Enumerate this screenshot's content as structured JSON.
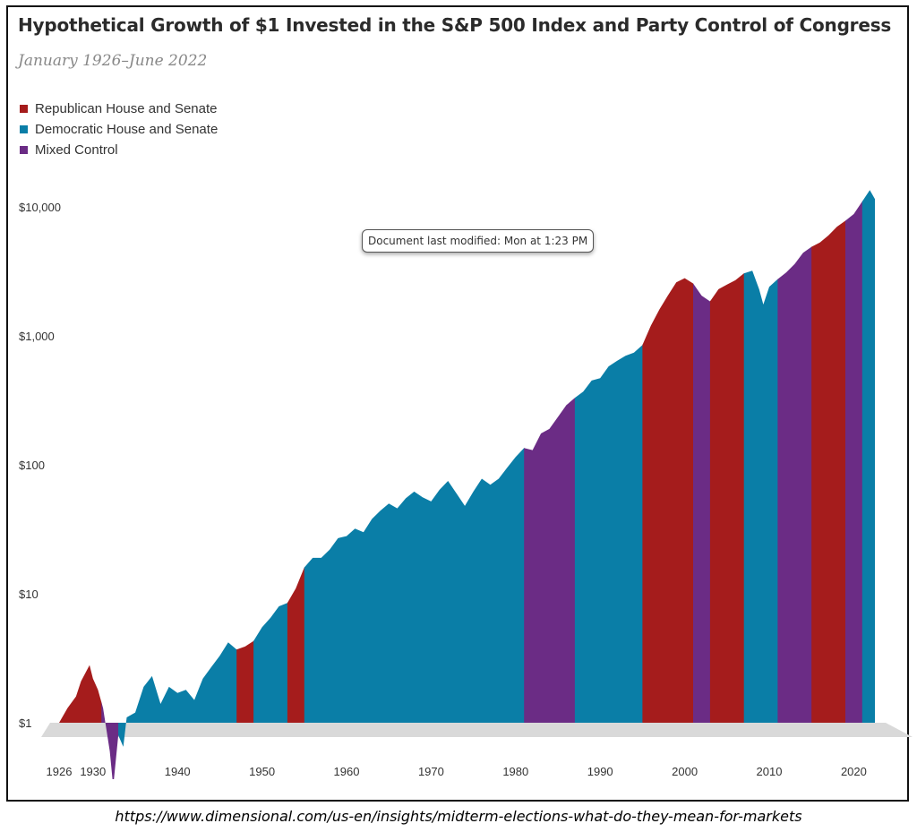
{
  "title": "Hypothetical Growth of $1 Invested in the S&P 500 Index and Party Control of Congress",
  "subtitle": "January 1926–June 2022",
  "legend": [
    {
      "label": "Republican House and Senate",
      "color": "#a51c1c"
    },
    {
      "label": "Democratic House and Senate",
      "color": "#0a7ea7"
    },
    {
      "label": "Mixed Control",
      "color": "#6b2c85"
    }
  ],
  "tooltip": "Document last modified: Mon at 1:23 PM",
  "source_url": "https://www.dimensional.com/us-en/insights/midterm-elections-what-do-they-mean-for-markets",
  "chart_data": {
    "type": "area",
    "y_scale": "log",
    "ylim": [
      1,
      15000
    ],
    "xlim": [
      1926,
      2022.5
    ],
    "y_ticks": [
      {
        "value": 1,
        "label": "$1"
      },
      {
        "value": 10,
        "label": "$10"
      },
      {
        "value": 100,
        "label": "$100"
      },
      {
        "value": 1000,
        "label": "$1,000"
      },
      {
        "value": 10000,
        "label": "$10,000"
      }
    ],
    "x_ticks": [
      {
        "value": 1926,
        "label": "1926"
      },
      {
        "value": 1930,
        "label": "1930"
      },
      {
        "value": 1940,
        "label": "1940"
      },
      {
        "value": 1950,
        "label": "1950"
      },
      {
        "value": 1960,
        "label": "1960"
      },
      {
        "value": 1970,
        "label": "1970"
      },
      {
        "value": 1980,
        "label": "1980"
      },
      {
        "value": 1990,
        "label": "1990"
      },
      {
        "value": 2000,
        "label": "2000"
      },
      {
        "value": 2010,
        "label": "2010"
      },
      {
        "value": 2020,
        "label": "2020"
      }
    ],
    "series": [
      {
        "x": 1926.0,
        "y": 1.0
      },
      {
        "x": 1927.0,
        "y": 1.3
      },
      {
        "x": 1928.0,
        "y": 1.6
      },
      {
        "x": 1928.6,
        "y": 2.1
      },
      {
        "x": 1929.6,
        "y": 2.8
      },
      {
        "x": 1930.0,
        "y": 2.2
      },
      {
        "x": 1930.6,
        "y": 1.8
      },
      {
        "x": 1931.2,
        "y": 1.3
      },
      {
        "x": 1932.0,
        "y": 0.6
      },
      {
        "x": 1932.4,
        "y": 0.32
      },
      {
        "x": 1933.0,
        "y": 0.8
      },
      {
        "x": 1933.6,
        "y": 0.65
      },
      {
        "x": 1934.0,
        "y": 1.1
      },
      {
        "x": 1935.0,
        "y": 1.2
      },
      {
        "x": 1936.0,
        "y": 1.9
      },
      {
        "x": 1937.0,
        "y": 2.3
      },
      {
        "x": 1938.0,
        "y": 1.4
      },
      {
        "x": 1939.0,
        "y": 1.9
      },
      {
        "x": 1940.0,
        "y": 1.7
      },
      {
        "x": 1941.0,
        "y": 1.8
      },
      {
        "x": 1942.0,
        "y": 1.5
      },
      {
        "x": 1943.0,
        "y": 2.2
      },
      {
        "x": 1944.0,
        "y": 2.7
      },
      {
        "x": 1945.0,
        "y": 3.3
      },
      {
        "x": 1946.0,
        "y": 4.2
      },
      {
        "x": 1947.0,
        "y": 3.7
      },
      {
        "x": 1948.0,
        "y": 3.9
      },
      {
        "x": 1949.0,
        "y": 4.3
      },
      {
        "x": 1950.0,
        "y": 5.5
      },
      {
        "x": 1951.0,
        "y": 6.5
      },
      {
        "x": 1952.0,
        "y": 8.0
      },
      {
        "x": 1953.0,
        "y": 8.5
      },
      {
        "x": 1954.0,
        "y": 11.0
      },
      {
        "x": 1955.0,
        "y": 16.0
      },
      {
        "x": 1956.0,
        "y": 19.0
      },
      {
        "x": 1957.0,
        "y": 19.0
      },
      {
        "x": 1958.0,
        "y": 22.0
      },
      {
        "x": 1959.0,
        "y": 27.0
      },
      {
        "x": 1960.0,
        "y": 28.0
      },
      {
        "x": 1961.0,
        "y": 32.0
      },
      {
        "x": 1962.0,
        "y": 30.0
      },
      {
        "x": 1963.0,
        "y": 38.0
      },
      {
        "x": 1964.0,
        "y": 44.0
      },
      {
        "x": 1965.0,
        "y": 50.0
      },
      {
        "x": 1966.0,
        "y": 46.0
      },
      {
        "x": 1967.0,
        "y": 55.0
      },
      {
        "x": 1968.0,
        "y": 62.0
      },
      {
        "x": 1969.0,
        "y": 56.0
      },
      {
        "x": 1970.0,
        "y": 52.0
      },
      {
        "x": 1971.0,
        "y": 64.0
      },
      {
        "x": 1972.0,
        "y": 75.0
      },
      {
        "x": 1973.0,
        "y": 60.0
      },
      {
        "x": 1974.0,
        "y": 48.0
      },
      {
        "x": 1975.0,
        "y": 62.0
      },
      {
        "x": 1976.0,
        "y": 78.0
      },
      {
        "x": 1977.0,
        "y": 70.0
      },
      {
        "x": 1978.0,
        "y": 78.0
      },
      {
        "x": 1979.0,
        "y": 95.0
      },
      {
        "x": 1980.0,
        "y": 115.0
      },
      {
        "x": 1981.0,
        "y": 135.0
      },
      {
        "x": 1982.0,
        "y": 130.0
      },
      {
        "x": 1983.0,
        "y": 175.0
      },
      {
        "x": 1984.0,
        "y": 190.0
      },
      {
        "x": 1985.0,
        "y": 235.0
      },
      {
        "x": 1986.0,
        "y": 290.0
      },
      {
        "x": 1987.0,
        "y": 330.0
      },
      {
        "x": 1988.0,
        "y": 370.0
      },
      {
        "x": 1989.0,
        "y": 450.0
      },
      {
        "x": 1990.0,
        "y": 470.0
      },
      {
        "x": 1991.0,
        "y": 580.0
      },
      {
        "x": 1992.0,
        "y": 640.0
      },
      {
        "x": 1993.0,
        "y": 700.0
      },
      {
        "x": 1994.0,
        "y": 740.0
      },
      {
        "x": 1995.0,
        "y": 850.0
      },
      {
        "x": 1996.0,
        "y": 1200.0
      },
      {
        "x": 1997.0,
        "y": 1600.0
      },
      {
        "x": 1998.0,
        "y": 2050.0
      },
      {
        "x": 1999.0,
        "y": 2600.0
      },
      {
        "x": 2000.0,
        "y": 2800.0
      },
      {
        "x": 2001.0,
        "y": 2550.0
      },
      {
        "x": 2002.0,
        "y": 2050.0
      },
      {
        "x": 2003.0,
        "y": 1850.0
      },
      {
        "x": 2004.0,
        "y": 2300.0
      },
      {
        "x": 2005.0,
        "y": 2500.0
      },
      {
        "x": 2006.0,
        "y": 2700.0
      },
      {
        "x": 2007.0,
        "y": 3050.0
      },
      {
        "x": 2008.0,
        "y": 3200.0
      },
      {
        "x": 2008.8,
        "y": 2300.0
      },
      {
        "x": 2009.3,
        "y": 1750.0
      },
      {
        "x": 2010.0,
        "y": 2400.0
      },
      {
        "x": 2011.0,
        "y": 2750.0
      },
      {
        "x": 2012.0,
        "y": 3100.0
      },
      {
        "x": 2013.0,
        "y": 3600.0
      },
      {
        "x": 2014.0,
        "y": 4400.0
      },
      {
        "x": 2015.0,
        "y": 4900.0
      },
      {
        "x": 2016.0,
        "y": 5300.0
      },
      {
        "x": 2017.0,
        "y": 6000.0
      },
      {
        "x": 2018.0,
        "y": 7000.0
      },
      {
        "x": 2019.0,
        "y": 7800.0
      },
      {
        "x": 2020.0,
        "y": 8800.0
      },
      {
        "x": 2021.0,
        "y": 11000.0
      },
      {
        "x": 2021.9,
        "y": 13500.0
      },
      {
        "x": 2022.5,
        "y": 11500.0
      }
    ],
    "segments": [
      {
        "start": 1926.0,
        "end": 1931.0,
        "party": "republican"
      },
      {
        "start": 1931.0,
        "end": 1933.0,
        "party": "mixed"
      },
      {
        "start": 1933.0,
        "end": 1947.0,
        "party": "democratic"
      },
      {
        "start": 1947.0,
        "end": 1949.0,
        "party": "republican"
      },
      {
        "start": 1949.0,
        "end": 1953.0,
        "party": "democratic"
      },
      {
        "start": 1953.0,
        "end": 1955.0,
        "party": "republican"
      },
      {
        "start": 1955.0,
        "end": 1981.0,
        "party": "democratic"
      },
      {
        "start": 1981.0,
        "end": 1987.0,
        "party": "mixed"
      },
      {
        "start": 1987.0,
        "end": 1995.0,
        "party": "democratic"
      },
      {
        "start": 1995.0,
        "end": 2001.0,
        "party": "republican"
      },
      {
        "start": 2001.0,
        "end": 2003.0,
        "party": "mixed"
      },
      {
        "start": 2003.0,
        "end": 2007.0,
        "party": "republican"
      },
      {
        "start": 2007.0,
        "end": 2011.0,
        "party": "democratic"
      },
      {
        "start": 2011.0,
        "end": 2015.0,
        "party": "mixed"
      },
      {
        "start": 2015.0,
        "end": 2019.0,
        "party": "republican"
      },
      {
        "start": 2019.0,
        "end": 2021.0,
        "party": "mixed"
      },
      {
        "start": 2021.0,
        "end": 2022.5,
        "party": "democratic"
      }
    ],
    "party_colors": {
      "republican": "#a51c1c",
      "democratic": "#0a7ea7",
      "mixed": "#6b2c85"
    }
  }
}
